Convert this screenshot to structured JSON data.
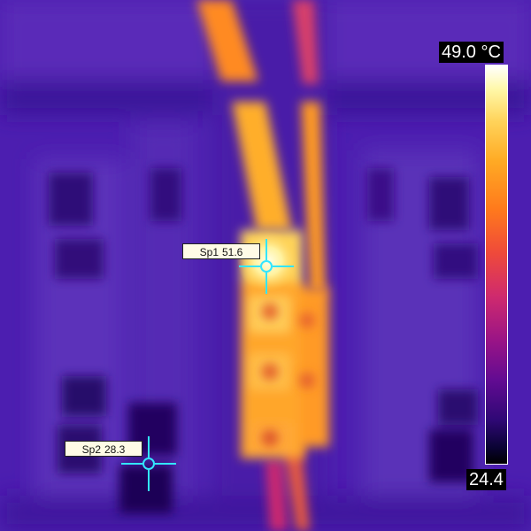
{
  "scale": {
    "max_label": "49.0 °C",
    "min_label": "24.4",
    "palette_colors": [
      "#ffffff",
      "#fff8a8",
      "#ffd35a",
      "#ffaa24",
      "#ff7a1c",
      "#ef4a3a",
      "#cf2a6e",
      "#9a1486",
      "#620b92",
      "#2f0875",
      "#0a0333",
      "#000000"
    ]
  },
  "spots": [
    {
      "name": "Sp1",
      "value": "51.6"
    },
    {
      "name": "Sp2",
      "value": "28.3"
    }
  ],
  "colors": {
    "crosshair": "#33e6ff",
    "label_background": "#fffbe6",
    "hot": "#fff6b0",
    "background": "#4a1fb0"
  }
}
